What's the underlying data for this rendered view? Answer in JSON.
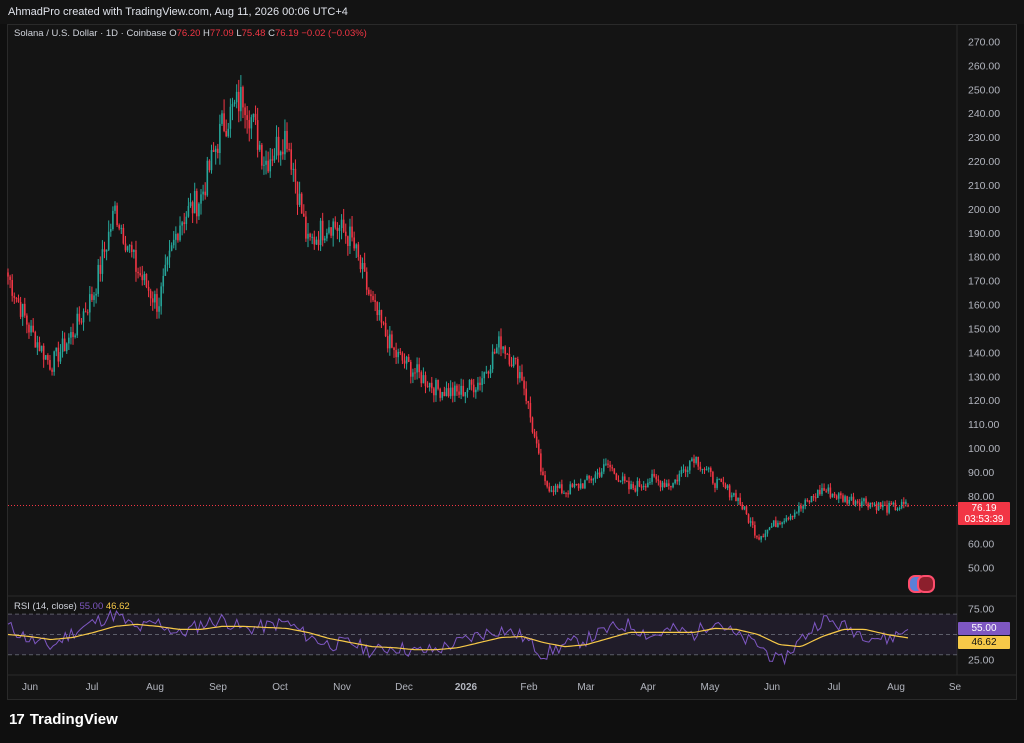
{
  "header": {
    "attribution": "AhmadPro created with TradingView.com, Aug 11, 2026 00:06 UTC+4"
  },
  "legend": {
    "symbol": "Solana / U.S. Dollar · 1D · Coinbase",
    "o_label": "O",
    "o_val": "76.20",
    "h_label": "H",
    "h_val": "77.09",
    "l_label": "L",
    "l_val": "75.48",
    "c_label": "C",
    "c_val": "76.19",
    "change": "−0.02 (−0.03%)"
  },
  "price_tag": {
    "price": "76.19",
    "countdown": "03:53:39"
  },
  "rsi_legend": {
    "name": "RSI (14, close)",
    "rsi": "55.00",
    "ma": "46.62"
  },
  "rsi_tags": {
    "rsi": "55.00",
    "ma": "46.62"
  },
  "brand": {
    "name": "TradingView",
    "mark": "17"
  },
  "colors": {
    "up": "#26a69a",
    "down": "#f23645",
    "rsi": "#7e57c2",
    "rsi_ma": "#f7c948",
    "bg": "#141414"
  },
  "chart_data": [
    {
      "type": "candlestick",
      "title": "Solana / U.S. Dollar · 1D · Coinbase",
      "ylim": [
        40,
        275
      ],
      "y_ticks": [
        "270.00",
        "260.00",
        "250.00",
        "240.00",
        "230.00",
        "220.00",
        "210.00",
        "200.00",
        "190.00",
        "180.00",
        "170.00",
        "160.00",
        "150.00",
        "140.00",
        "130.00",
        "120.00",
        "110.00",
        "100.00",
        "90.00",
        "80.00",
        "60.00",
        "50.00"
      ],
      "x_ticks": [
        "Jun",
        "Jul",
        "Aug",
        "Sep",
        "Oct",
        "Nov",
        "Dec",
        "2026",
        "Feb",
        "Mar",
        "Apr",
        "May",
        "Jun",
        "Jul",
        "Aug",
        "Se"
      ],
      "close_path": [
        [
          "Jun",
          172
        ],
        [
          "mid-Jun",
          150
        ],
        [
          "late-Jun",
          135
        ],
        [
          "Jul",
          148
        ],
        [
          "mid-Jul",
          165
        ],
        [
          "late-Jul",
          200
        ],
        [
          "Aug",
          175
        ],
        [
          "mid-Aug",
          160
        ],
        [
          "late-Aug",
          195
        ],
        [
          "Sep",
          205
        ],
        [
          "mid-Sep",
          235
        ],
        [
          "late-Sep",
          248
        ],
        [
          "Oct",
          220
        ],
        [
          "early-Oct",
          232
        ],
        [
          "mid-Oct",
          185
        ],
        [
          "late-Oct",
          195
        ],
        [
          "Nov",
          188
        ],
        [
          "mid-Nov",
          160
        ],
        [
          "late-Nov",
          140
        ],
        [
          "Dec",
          132
        ],
        [
          "mid-Dec",
          125
        ],
        [
          "late-Dec",
          123
        ],
        [
          "2026",
          128
        ],
        [
          "mid-Jan",
          145
        ],
        [
          "late-Jan",
          130
        ],
        [
          "Feb",
          85
        ],
        [
          "mid-Feb",
          82
        ],
        [
          "Mar",
          86
        ],
        [
          "mid-Mar",
          93
        ],
        [
          "Apr",
          83
        ],
        [
          "mid-Apr",
          87
        ],
        [
          "May",
          85
        ],
        [
          "early-May",
          97
        ],
        [
          "mid-May",
          86
        ],
        [
          "late-May",
          80
        ],
        [
          "Jun",
          63
        ],
        [
          "mid-Jun",
          70
        ],
        [
          "Jul",
          75
        ],
        [
          "early-Jul",
          83
        ],
        [
          "mid-Jul",
          79
        ],
        [
          "late-Jul",
          78
        ],
        [
          "Aug",
          75
        ],
        [
          "Aug 11",
          76.19
        ]
      ],
      "last": {
        "open": 76.2,
        "high": 77.09,
        "low": 75.48,
        "close": 76.19
      }
    },
    {
      "type": "line",
      "title": "RSI (14, close)",
      "ylim": [
        15,
        82
      ],
      "y_ticks": [
        "75.00",
        "25.00"
      ],
      "bands": [
        70,
        50,
        30
      ],
      "series": [
        {
          "name": "RSI",
          "values": [
            58,
            45,
            38,
            52,
            62,
            70,
            55,
            62,
            50,
            60,
            65,
            55,
            58,
            62,
            48,
            40,
            42,
            33,
            38,
            33,
            35,
            42,
            50,
            55,
            48,
            30,
            40,
            45,
            55,
            60,
            48,
            55,
            50,
            65,
            48,
            40,
            22,
            45,
            65,
            58,
            50,
            45,
            55
          ]
        },
        {
          "name": "MA",
          "values": [
            50,
            48,
            45,
            47,
            52,
            58,
            60,
            58,
            55,
            55,
            58,
            58,
            57,
            56,
            52,
            46,
            42,
            38,
            37,
            35,
            35,
            37,
            42,
            47,
            48,
            42,
            38,
            40,
            46,
            52,
            52,
            52,
            52,
            56,
            55,
            50,
            40,
            38,
            48,
            55,
            55,
            50,
            46.62
          ]
        }
      ]
    }
  ]
}
